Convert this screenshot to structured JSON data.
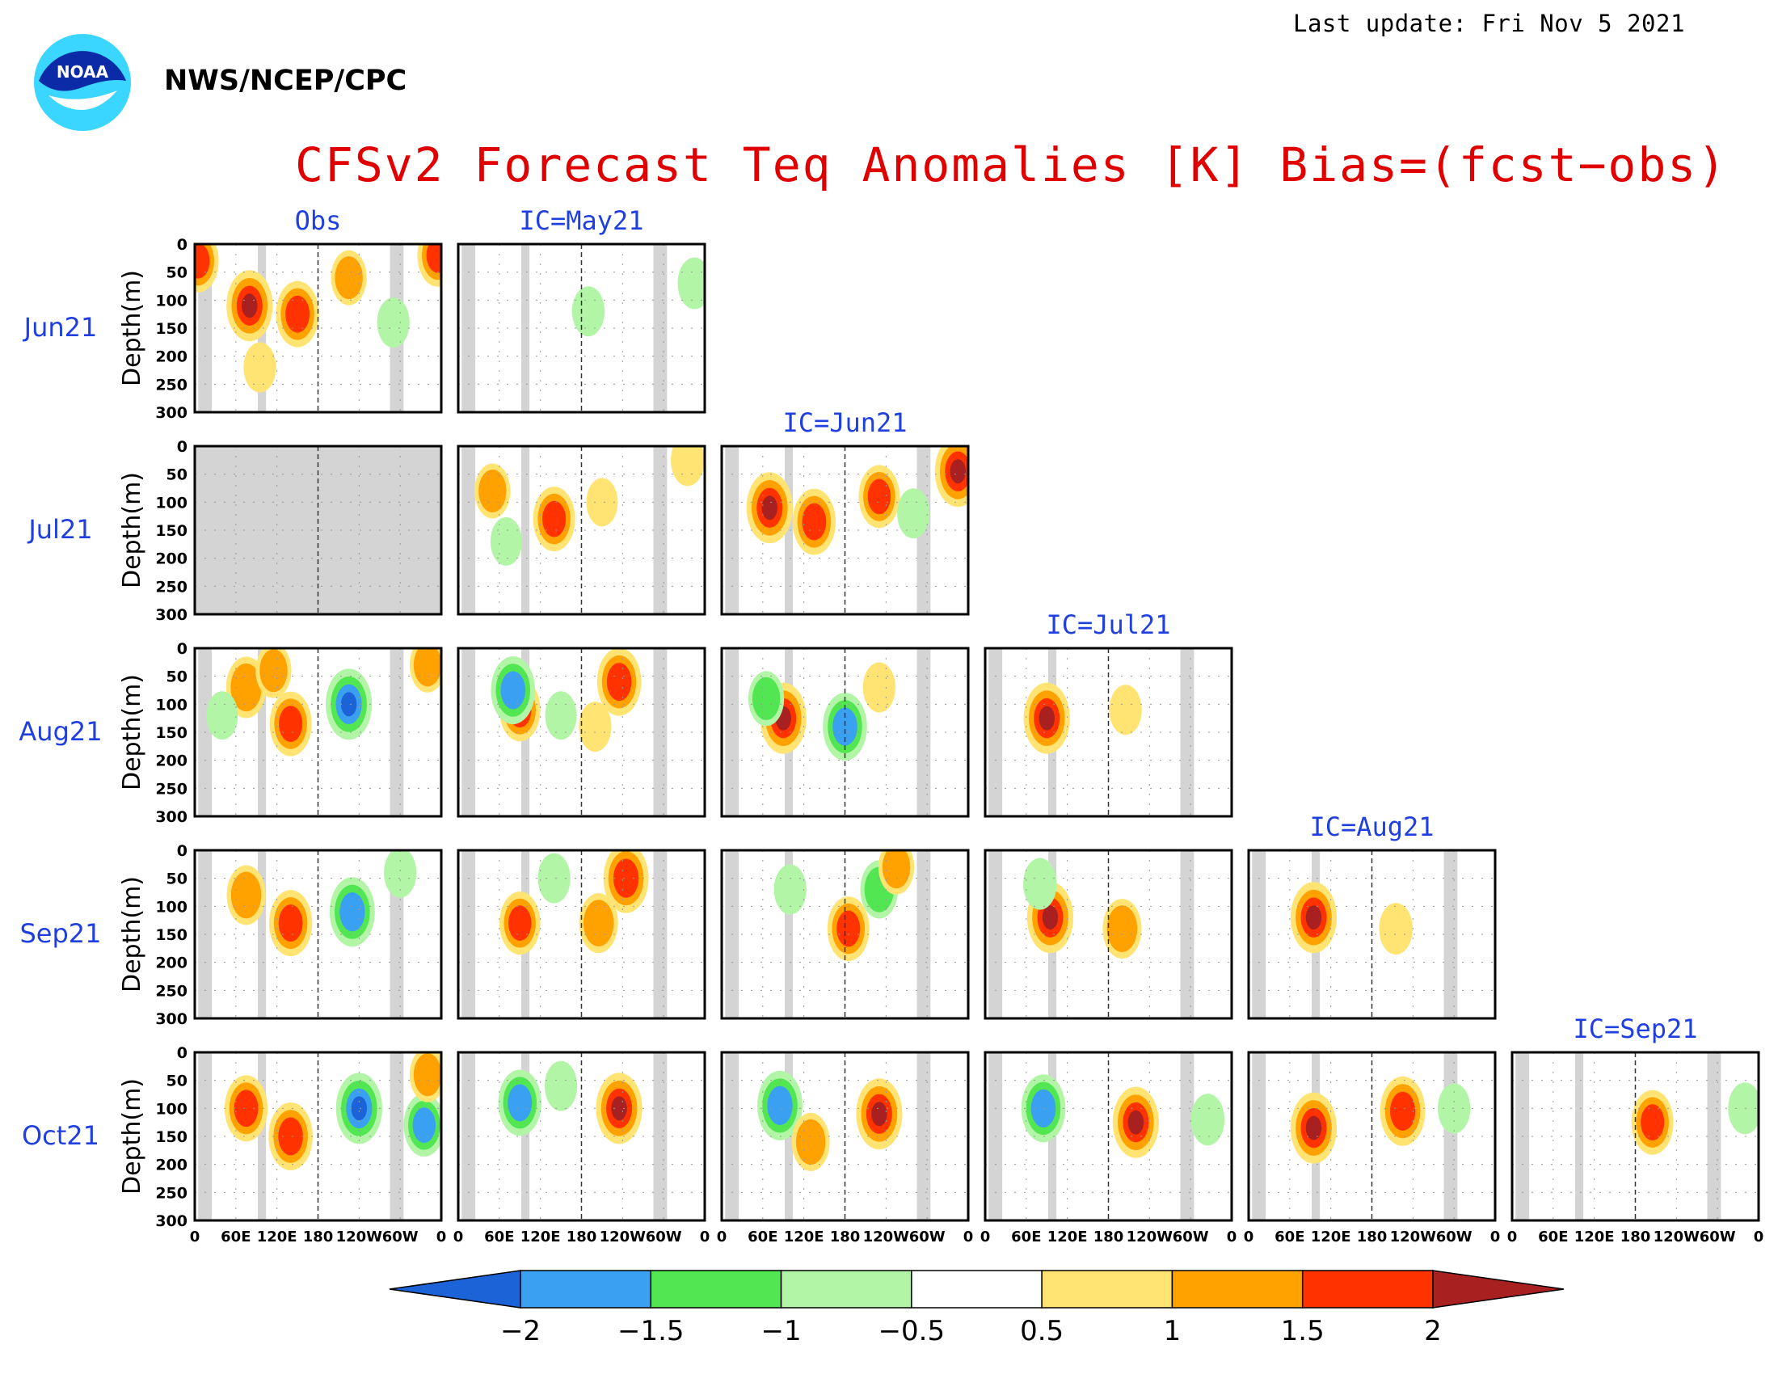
{
  "header": {
    "last_update": "Last update: Fri Nov 5 2021",
    "agency": "NWS/NCEP/CPC",
    "logo_text": "NOAA",
    "title": "CFSv2 Forecast Teq Anomalies [K] Bias=(fcst−obs)"
  },
  "colors": {
    "title": "#e00000",
    "column_title": "#1f3fe0",
    "row_label": "#1f3fe0",
    "land_mask": "#d4d4d4"
  },
  "chart_data": {
    "type": "heatmap",
    "variable": "Teq Anomalies [K]",
    "columns": [
      "Obs",
      "IC=May21",
      "IC=Jun21",
      "IC=Jul21",
      "IC=Aug21",
      "IC=Sep21"
    ],
    "rows": [
      "Jun21",
      "Jul21",
      "Aug21",
      "Sep21",
      "Oct21"
    ],
    "ylabel": "Depth(m)",
    "y_ticks": [
      "0",
      "50",
      "100",
      "150",
      "200",
      "250",
      "300"
    ],
    "ylim": [
      0,
      300
    ],
    "x_ticks": [
      "0",
      "60E",
      "120E",
      "180",
      "120W",
      "60W",
      "0"
    ],
    "xlim_deg": [
      0,
      360
    ],
    "levels": [
      -2,
      -1.5,
      -1,
      -0.5,
      0.5,
      1,
      1.5,
      2
    ],
    "level_labels": [
      "−2",
      "−1.5",
      "−1",
      "−0.5",
      "0.5",
      "1",
      "1.5",
      "2"
    ],
    "colorbar_colors": [
      "#1b63d6",
      "#3aa0f2",
      "#52e652",
      "#b2f5a6",
      "#ffffff",
      "#ffe474",
      "#ffa200",
      "#ff3200",
      "#a82020"
    ],
    "land_mask_lon": [
      [
        5,
        25
      ],
      [
        92,
        104
      ],
      [
        285,
        305
      ]
    ],
    "panels": [
      {
        "row": "Jun21",
        "column": "Obs",
        "missing": false,
        "anomalies": [
          {
            "lon": 80,
            "depth": 110,
            "value": 2
          },
          {
            "lon": 150,
            "depth": 125,
            "value": 1.7
          },
          {
            "lon": 225,
            "depth": 60,
            "value": 1
          },
          {
            "lon": 5,
            "depth": 30,
            "value": 1.5
          },
          {
            "lon": 355,
            "depth": 20,
            "value": 1.5
          },
          {
            "lon": 95,
            "depth": 220,
            "value": 0.7
          },
          {
            "lon": 290,
            "depth": 140,
            "value": -0.7
          }
        ]
      },
      {
        "row": "Jun21",
        "column": "IC=May21",
        "missing": false,
        "anomalies": [
          {
            "lon": 345,
            "depth": 70,
            "value": -0.8
          },
          {
            "lon": 190,
            "depth": 120,
            "value": -0.7
          }
        ]
      },
      {
        "row": "Jul21",
        "column": "Obs",
        "missing": true,
        "anomalies": []
      },
      {
        "row": "Jul21",
        "column": "IC=May21",
        "missing": false,
        "anomalies": [
          {
            "lon": 140,
            "depth": 130,
            "value": 1.6
          },
          {
            "lon": 50,
            "depth": 80,
            "value": 1
          },
          {
            "lon": 335,
            "depth": 25,
            "value": 0.8
          },
          {
            "lon": 70,
            "depth": 170,
            "value": -0.6
          },
          {
            "lon": 210,
            "depth": 100,
            "value": 0.6
          }
        ]
      },
      {
        "row": "Jul21",
        "column": "IC=Jun21",
        "missing": false,
        "anomalies": [
          {
            "lon": 70,
            "depth": 110,
            "value": 2
          },
          {
            "lon": 135,
            "depth": 135,
            "value": 1.7
          },
          {
            "lon": 230,
            "depth": 90,
            "value": 1.5
          },
          {
            "lon": 345,
            "depth": 45,
            "value": 2
          },
          {
            "lon": 280,
            "depth": 120,
            "value": -0.7
          }
        ]
      },
      {
        "row": "Aug21",
        "column": "Obs",
        "missing": false,
        "anomalies": [
          {
            "lon": 75,
            "depth": 70,
            "value": 1.4
          },
          {
            "lon": 140,
            "depth": 135,
            "value": 1.6
          },
          {
            "lon": 225,
            "depth": 100,
            "value": -2
          },
          {
            "lon": 115,
            "depth": 40,
            "value": 1
          },
          {
            "lon": 340,
            "depth": 30,
            "value": 1
          },
          {
            "lon": 40,
            "depth": 120,
            "value": -0.6
          }
        ]
      },
      {
        "row": "Aug21",
        "column": "IC=May21",
        "missing": false,
        "anomalies": [
          {
            "lon": 235,
            "depth": 60,
            "value": 1.8
          },
          {
            "lon": 90,
            "depth": 110,
            "value": 1.5
          },
          {
            "lon": 80,
            "depth": 75,
            "value": -1.8
          },
          {
            "lon": 200,
            "depth": 140,
            "value": 0.7
          },
          {
            "lon": 150,
            "depth": 120,
            "value": -0.6
          }
        ]
      },
      {
        "row": "Aug21",
        "column": "IC=Jun21",
        "missing": false,
        "anomalies": [
          {
            "lon": 90,
            "depth": 125,
            "value": 2
          },
          {
            "lon": 180,
            "depth": 140,
            "value": -1.8
          },
          {
            "lon": 230,
            "depth": 70,
            "value": 0.7
          },
          {
            "lon": 65,
            "depth": 90,
            "value": -1
          }
        ]
      },
      {
        "row": "Aug21",
        "column": "IC=Jul21",
        "missing": false,
        "anomalies": [
          {
            "lon": 90,
            "depth": 125,
            "value": 2
          },
          {
            "lon": 205,
            "depth": 110,
            "value": 0.7
          }
        ]
      },
      {
        "row": "Sep21",
        "column": "Obs",
        "missing": false,
        "anomalies": [
          {
            "lon": 75,
            "depth": 80,
            "value": 1.3
          },
          {
            "lon": 140,
            "depth": 130,
            "value": 1.7
          },
          {
            "lon": 230,
            "depth": 110,
            "value": -1.9
          },
          {
            "lon": 300,
            "depth": 40,
            "value": -0.7
          }
        ]
      },
      {
        "row": "Sep21",
        "column": "IC=May21",
        "missing": false,
        "anomalies": [
          {
            "lon": 245,
            "depth": 50,
            "value": 1.9
          },
          {
            "lon": 205,
            "depth": 130,
            "value": 1.3
          },
          {
            "lon": 90,
            "depth": 130,
            "value": 1.5
          },
          {
            "lon": 140,
            "depth": 50,
            "value": -0.7
          }
        ]
      },
      {
        "row": "Sep21",
        "column": "IC=Jun21",
        "missing": false,
        "anomalies": [
          {
            "lon": 185,
            "depth": 140,
            "value": 1.6
          },
          {
            "lon": 230,
            "depth": 70,
            "value": -1.2
          },
          {
            "lon": 255,
            "depth": 30,
            "value": 1
          },
          {
            "lon": 100,
            "depth": 70,
            "value": -0.7
          }
        ]
      },
      {
        "row": "Sep21",
        "column": "IC=Jul21",
        "missing": false,
        "anomalies": [
          {
            "lon": 95,
            "depth": 120,
            "value": 2
          },
          {
            "lon": 200,
            "depth": 140,
            "value": 1.3
          },
          {
            "lon": 80,
            "depth": 60,
            "value": -0.8
          }
        ]
      },
      {
        "row": "Sep21",
        "column": "IC=Aug21",
        "missing": false,
        "anomalies": [
          {
            "lon": 95,
            "depth": 120,
            "value": 2
          },
          {
            "lon": 215,
            "depth": 140,
            "value": 0.8
          }
        ]
      },
      {
        "row": "Oct21",
        "column": "Obs",
        "missing": false,
        "anomalies": [
          {
            "lon": 75,
            "depth": 100,
            "value": 1.7
          },
          {
            "lon": 140,
            "depth": 150,
            "value": 1.8
          },
          {
            "lon": 240,
            "depth": 100,
            "value": -2
          },
          {
            "lon": 335,
            "depth": 130,
            "value": -1.5
          },
          {
            "lon": 340,
            "depth": 40,
            "value": 1
          }
        ]
      },
      {
        "row": "Oct21",
        "column": "IC=May21",
        "missing": false,
        "anomalies": [
          {
            "lon": 235,
            "depth": 100,
            "value": 2
          },
          {
            "lon": 90,
            "depth": 90,
            "value": -1.7
          },
          {
            "lon": 150,
            "depth": 60,
            "value": -0.7
          }
        ]
      },
      {
        "row": "Oct21",
        "column": "IC=Jun21",
        "missing": false,
        "anomalies": [
          {
            "lon": 230,
            "depth": 110,
            "value": 2
          },
          {
            "lon": 85,
            "depth": 95,
            "value": -1.9
          },
          {
            "lon": 130,
            "depth": 160,
            "value": 1.2
          }
        ]
      },
      {
        "row": "Oct21",
        "column": "IC=Jul21",
        "missing": false,
        "anomalies": [
          {
            "lon": 220,
            "depth": 125,
            "value": 2
          },
          {
            "lon": 85,
            "depth": 100,
            "value": -1.8
          },
          {
            "lon": 325,
            "depth": 120,
            "value": -0.8
          }
        ]
      },
      {
        "row": "Oct21",
        "column": "IC=Aug21",
        "missing": false,
        "anomalies": [
          {
            "lon": 225,
            "depth": 105,
            "value": 1.9
          },
          {
            "lon": 95,
            "depth": 135,
            "value": 2
          },
          {
            "lon": 300,
            "depth": 100,
            "value": -0.7
          }
        ]
      },
      {
        "row": "Oct21",
        "column": "IC=Sep21",
        "missing": false,
        "anomalies": [
          {
            "lon": 205,
            "depth": 125,
            "value": 1.6
          },
          {
            "lon": 340,
            "depth": 100,
            "value": -0.8
          }
        ]
      }
    ]
  }
}
